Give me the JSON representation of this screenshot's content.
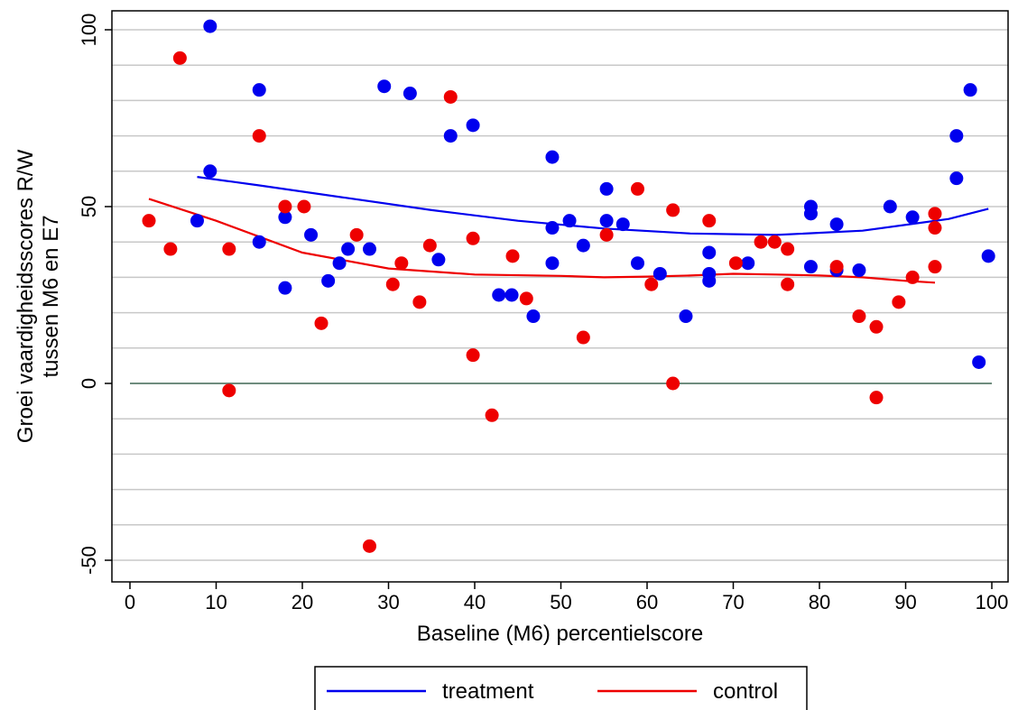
{
  "chart_data": {
    "type": "scatter",
    "title": "",
    "xlabel": "Baseline (M6) percentielscore",
    "ylabel_lines": [
      "Groei vaardigheidsscores R/W",
      "tussen M6 en E7"
    ],
    "xlim": [
      0,
      100
    ],
    "ylim": [
      -50,
      100
    ],
    "x_ticks": [
      0,
      10,
      20,
      30,
      40,
      50,
      60,
      70,
      80,
      90,
      100
    ],
    "y_ticks": [
      -50,
      0,
      50,
      100
    ],
    "y_gridlines": [
      -50,
      -40,
      -30,
      -20,
      -10,
      0,
      10,
      20,
      30,
      40,
      50,
      60,
      70,
      80,
      90,
      100
    ],
    "grid": "horizontal",
    "reference_line": {
      "y": 0,
      "color": "#6e8c7e"
    },
    "legend_position": "bottom",
    "series": [
      {
        "name": "treatment",
        "color": "#0000ee",
        "points": [
          [
            7.8,
            46
          ],
          [
            9.3,
            101
          ],
          [
            9.3,
            60
          ],
          [
            15,
            83
          ],
          [
            15,
            40
          ],
          [
            18,
            47
          ],
          [
            18,
            27
          ],
          [
            21,
            42
          ],
          [
            23,
            29
          ],
          [
            24.3,
            34
          ],
          [
            25.3,
            38
          ],
          [
            27.8,
            38
          ],
          [
            29.5,
            84
          ],
          [
            32.5,
            82
          ],
          [
            35.8,
            35
          ],
          [
            37.2,
            70
          ],
          [
            39.8,
            73
          ],
          [
            42.8,
            25
          ],
          [
            44.3,
            25
          ],
          [
            46.8,
            19
          ],
          [
            49,
            64
          ],
          [
            49,
            44
          ],
          [
            49,
            34
          ],
          [
            51,
            46
          ],
          [
            52.6,
            39
          ],
          [
            55.3,
            55
          ],
          [
            55.3,
            46
          ],
          [
            57.2,
            45
          ],
          [
            58.9,
            34
          ],
          [
            61.5,
            31
          ],
          [
            64.5,
            19
          ],
          [
            67.2,
            37
          ],
          [
            67.2,
            31
          ],
          [
            67.2,
            29
          ],
          [
            71.7,
            34
          ],
          [
            79,
            50
          ],
          [
            79,
            48
          ],
          [
            79,
            33
          ],
          [
            82,
            45
          ],
          [
            82,
            32
          ],
          [
            84.6,
            32
          ],
          [
            88.2,
            50
          ],
          [
            90.8,
            47
          ],
          [
            95.9,
            70
          ],
          [
            95.9,
            58
          ],
          [
            97.5,
            83
          ],
          [
            98.5,
            6
          ],
          [
            99.6,
            36
          ]
        ],
        "fit": [
          [
            7.8,
            58.4
          ],
          [
            15,
            56
          ],
          [
            25,
            52.5
          ],
          [
            35,
            49
          ],
          [
            45,
            46
          ],
          [
            55,
            43.8
          ],
          [
            65,
            42.4
          ],
          [
            75,
            42
          ],
          [
            85,
            43.2
          ],
          [
            95,
            46.5
          ],
          [
            99.6,
            49.4
          ]
        ]
      },
      {
        "name": "control",
        "color": "#ee0000",
        "points": [
          [
            2.2,
            46
          ],
          [
            4.7,
            38
          ],
          [
            5.8,
            92
          ],
          [
            11.5,
            38
          ],
          [
            11.5,
            -2
          ],
          [
            15,
            70
          ],
          [
            18,
            50
          ],
          [
            20.2,
            50
          ],
          [
            22.2,
            17
          ],
          [
            26.3,
            42
          ],
          [
            27.8,
            -46
          ],
          [
            30.5,
            28
          ],
          [
            31.5,
            34
          ],
          [
            33.6,
            23
          ],
          [
            34.8,
            39
          ],
          [
            37.2,
            81
          ],
          [
            39.8,
            41
          ],
          [
            39.8,
            8
          ],
          [
            42,
            -9
          ],
          [
            44.4,
            36
          ],
          [
            46,
            24
          ],
          [
            52.6,
            13
          ],
          [
            55.3,
            42
          ],
          [
            58.9,
            55
          ],
          [
            60.5,
            28
          ],
          [
            63,
            49
          ],
          [
            63,
            0
          ],
          [
            67.2,
            46
          ],
          [
            70.3,
            34
          ],
          [
            73.2,
            40
          ],
          [
            74.8,
            40
          ],
          [
            76.3,
            38
          ],
          [
            76.3,
            28
          ],
          [
            82,
            33
          ],
          [
            84.6,
            19
          ],
          [
            86.6,
            16
          ],
          [
            86.6,
            -4
          ],
          [
            89.2,
            23
          ],
          [
            90.8,
            30
          ],
          [
            93.4,
            48
          ],
          [
            93.4,
            44
          ],
          [
            93.4,
            33
          ]
        ],
        "fit": [
          [
            2.2,
            52.2
          ],
          [
            10,
            46
          ],
          [
            20,
            37
          ],
          [
            30,
            32.5
          ],
          [
            40,
            30.8
          ],
          [
            50,
            30.4
          ],
          [
            55,
            30
          ],
          [
            60,
            30.2
          ],
          [
            65,
            30.5
          ],
          [
            70,
            31
          ],
          [
            75,
            30.8
          ],
          [
            80,
            30.5
          ],
          [
            85,
            30
          ],
          [
            90,
            29
          ],
          [
            93.4,
            28.5
          ]
        ]
      }
    ]
  }
}
